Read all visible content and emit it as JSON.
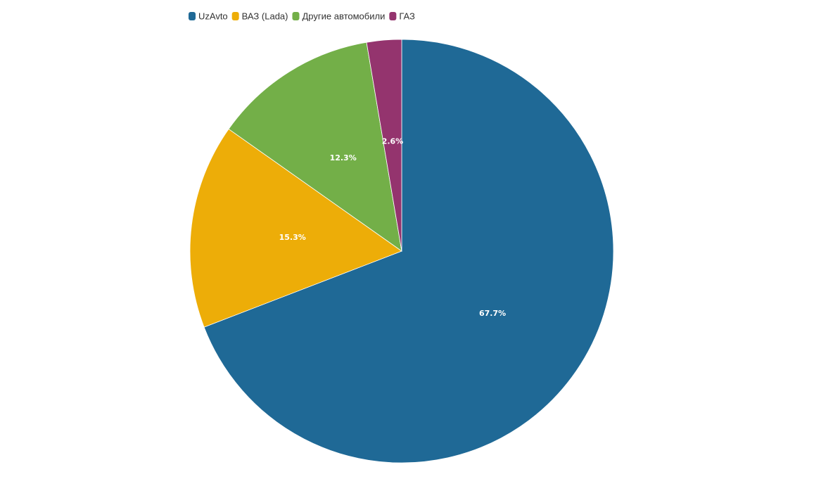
{
  "chart_data": {
    "type": "pie",
    "title": "",
    "legend_position": "top-left",
    "start_angle_deg": 0,
    "direction": "clockwise",
    "slices": [
      {
        "label": "UzAvto",
        "value": 67.7,
        "value_label": "67.7%",
        "color": "#1f6996"
      },
      {
        "label": "ВАЗ (Lada)",
        "value": 15.3,
        "value_label": "15.3%",
        "color": "#edad08"
      },
      {
        "label": "Другие автомобили",
        "value": 12.3,
        "value_label": "12.3%",
        "color": "#73af48"
      },
      {
        "label": "ГАЗ",
        "value": 2.6,
        "value_label": "2.6%",
        "color": "#94346e"
      }
    ]
  }
}
